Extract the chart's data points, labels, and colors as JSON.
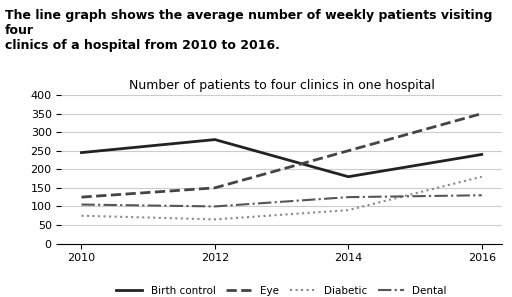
{
  "title": "Number of patients to four clinics in one hospital",
  "description": "The line graph shows the average number of weekly patients visiting four\nclinics of a hospital from 2010 to 2016.",
  "years": [
    2010,
    2012,
    2014,
    2016
  ],
  "series": {
    "Birth control": [
      245,
      280,
      180,
      240
    ],
    "Eye": [
      125,
      150,
      250,
      350
    ],
    "Diabetic": [
      75,
      65,
      90,
      180
    ],
    "Dental": [
      105,
      100,
      125,
      130
    ]
  },
  "styles": {
    "Birth control": {
      "color": "#222222",
      "linestyle": "-",
      "linewidth": 2.0
    },
    "Eye": {
      "color": "#444444",
      "linestyle": "--",
      "linewidth": 2.0
    },
    "Diabetic": {
      "color": "#888888",
      "linestyle": ":",
      "linewidth": 1.5
    },
    "Dental": {
      "color": "#555555",
      "linestyle": "-.",
      "linewidth": 1.5
    }
  },
  "ylim": [
    0,
    400
  ],
  "yticks": [
    0,
    50,
    100,
    150,
    200,
    250,
    300,
    350,
    400
  ],
  "xticks": [
    2010,
    2012,
    2014,
    2016
  ],
  "background_color": "#ffffff",
  "grid_color": "#cccccc",
  "description_fontsize": 9,
  "title_fontsize": 9,
  "legend_fontsize": 7.5,
  "tick_fontsize": 8
}
